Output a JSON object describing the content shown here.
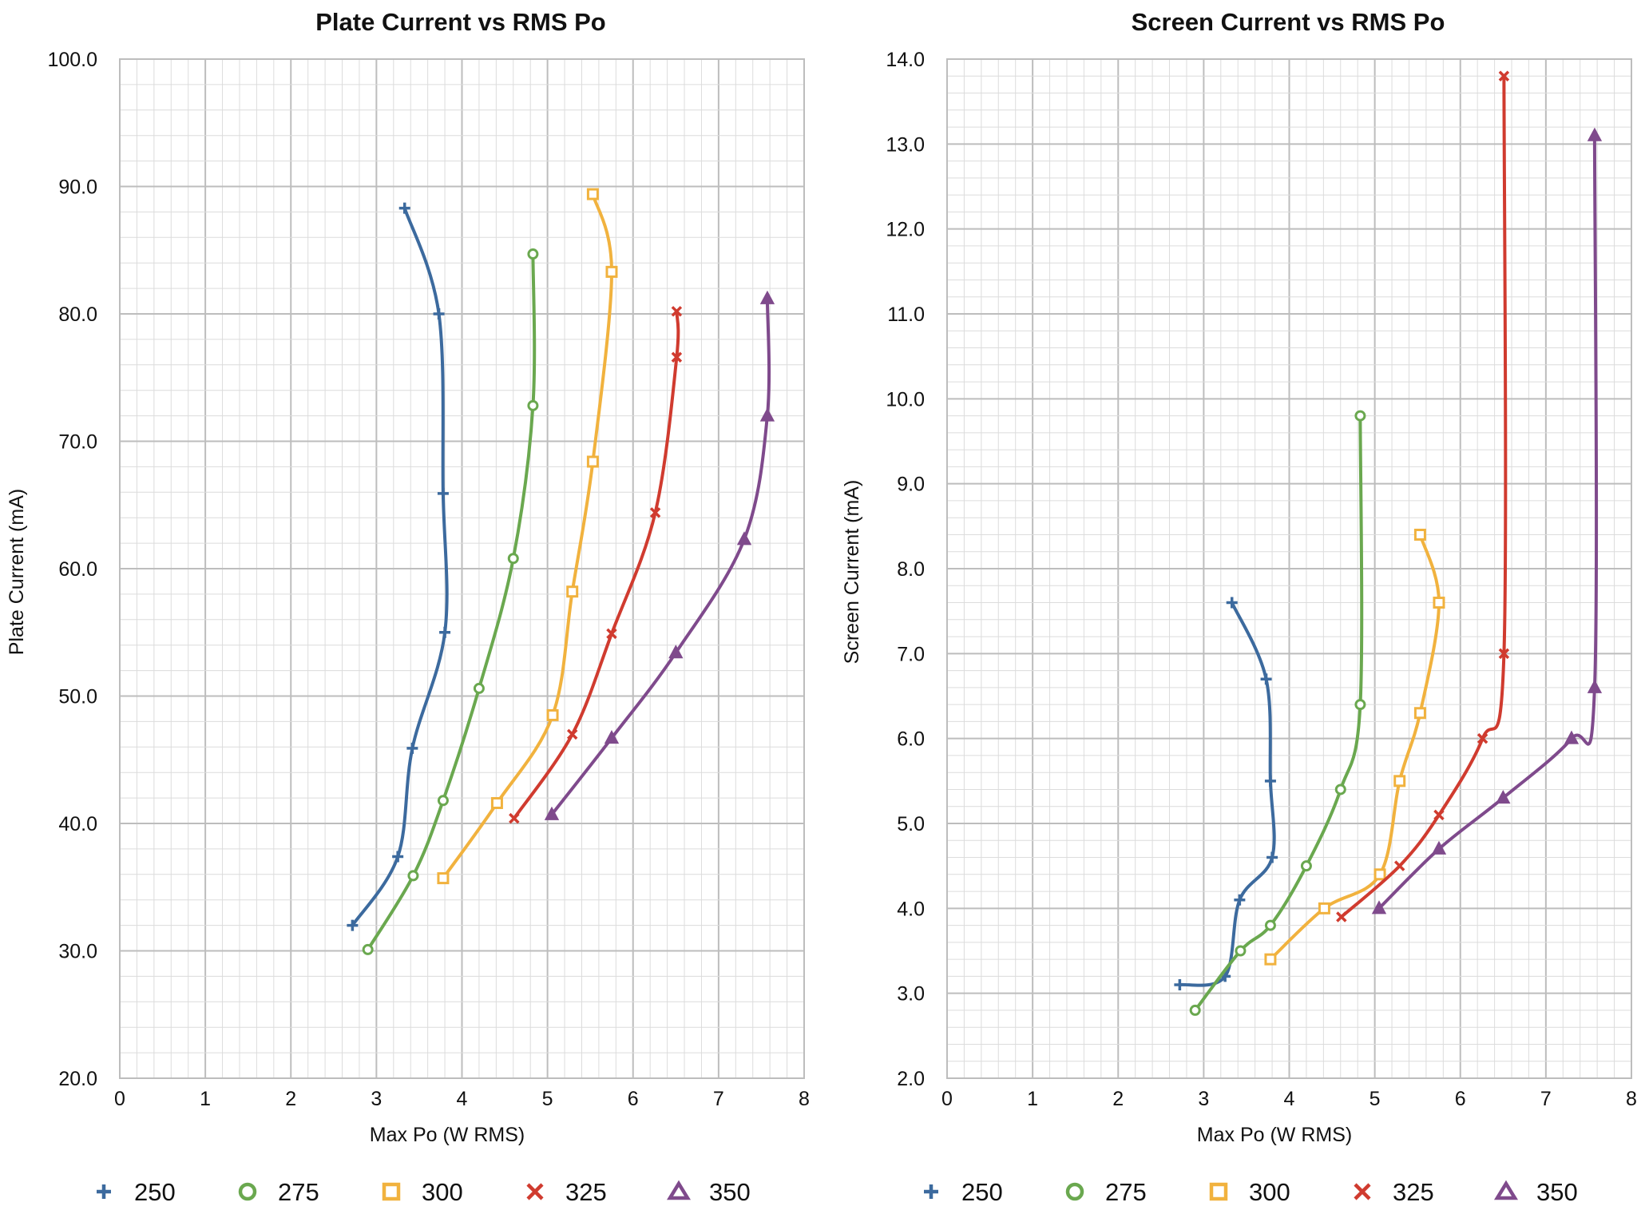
{
  "colors": {
    "250": "#3C6A9E",
    "275": "#6AA84F",
    "300": "#F1B23E",
    "325": "#D03B2F",
    "350": "#7F4A8C",
    "grid_major": "#bdbdbd",
    "grid_minor": "#dcdcdc"
  },
  "chart_data": [
    {
      "type": "line",
      "title": "Plate Current vs RMS Po",
      "xlabel": "Max Po (W RMS)",
      "ylabel": "Plate Current (mA)",
      "xlim": [
        0,
        8
      ],
      "ylim": [
        20,
        100
      ],
      "x_ticks": [
        "0",
        "1",
        "2",
        "3",
        "4",
        "5",
        "6",
        "7",
        "8"
      ],
      "y_ticks": [
        "20.0",
        "30.0",
        "40.0",
        "50.0",
        "60.0",
        "70.0",
        "80.0",
        "90.0",
        "100.0"
      ],
      "grid": true,
      "legend_position": "bottom",
      "series": [
        {
          "name": "250",
          "marker": "plus",
          "x": [
            2.72,
            3.25,
            3.42,
            3.8,
            3.78,
            3.73,
            3.33
          ],
          "y": [
            32.0,
            37.4,
            45.9,
            55.0,
            65.9,
            80.0,
            88.3
          ]
        },
        {
          "name": "275",
          "marker": "circle",
          "x": [
            2.9,
            3.43,
            3.78,
            4.2,
            4.6,
            4.83,
            4.83
          ],
          "y": [
            30.1,
            35.9,
            41.8,
            50.6,
            60.8,
            72.8,
            84.7
          ]
        },
        {
          "name": "300",
          "marker": "square",
          "x": [
            3.78,
            4.41,
            5.06,
            5.29,
            5.53,
            5.75,
            5.53
          ],
          "y": [
            35.7,
            41.6,
            48.5,
            58.2,
            68.4,
            83.3,
            89.4
          ]
        },
        {
          "name": "325",
          "marker": "cross",
          "x": [
            4.61,
            5.29,
            5.75,
            6.26,
            6.51,
            6.51
          ],
          "y": [
            40.4,
            47.0,
            54.9,
            64.4,
            76.6,
            80.2
          ]
        },
        {
          "name": "350",
          "marker": "triangle",
          "x": [
            5.05,
            5.75,
            6.5,
            7.3,
            7.57,
            7.57
          ],
          "y": [
            40.7,
            46.7,
            53.4,
            62.3,
            72.0,
            81.2
          ]
        }
      ]
    },
    {
      "type": "line",
      "title": "Screen Current vs RMS Po",
      "xlabel": "Max Po (W RMS)",
      "ylabel": "Screen Current (mA)",
      "xlim": [
        0,
        8
      ],
      "ylim": [
        2,
        14
      ],
      "x_ticks": [
        "0",
        "1",
        "2",
        "3",
        "4",
        "5",
        "6",
        "7",
        "8"
      ],
      "y_ticks": [
        "2.0",
        "3.0",
        "4.0",
        "5.0",
        "6.0",
        "7.0",
        "8.0",
        "9.0",
        "10.0",
        "11.0",
        "12.0",
        "13.0",
        "14.0"
      ],
      "grid": true,
      "legend_position": "bottom",
      "series": [
        {
          "name": "250",
          "marker": "plus",
          "x": [
            2.72,
            3.25,
            3.42,
            3.8,
            3.78,
            3.73,
            3.33
          ],
          "y": [
            3.1,
            3.2,
            4.1,
            4.6,
            5.5,
            6.7,
            7.6
          ]
        },
        {
          "name": "275",
          "marker": "circle",
          "x": [
            2.9,
            3.43,
            3.78,
            4.2,
            4.6,
            4.83,
            4.83
          ],
          "y": [
            2.8,
            3.5,
            3.8,
            4.5,
            5.4,
            6.4,
            9.8
          ]
        },
        {
          "name": "300",
          "marker": "square",
          "x": [
            3.78,
            4.41,
            5.06,
            5.29,
            5.53,
            5.75,
            5.53
          ],
          "y": [
            3.4,
            4.0,
            4.4,
            5.5,
            6.3,
            7.6,
            8.4
          ]
        },
        {
          "name": "325",
          "marker": "cross",
          "x": [
            4.61,
            5.29,
            5.75,
            6.26,
            6.51,
            6.51
          ],
          "y": [
            3.9,
            4.5,
            5.1,
            6.0,
            7.0,
            13.8
          ]
        },
        {
          "name": "350",
          "marker": "triangle",
          "x": [
            5.05,
            5.75,
            6.5,
            7.3,
            7.57,
            7.57
          ],
          "y": [
            4.0,
            4.7,
            5.3,
            6.0,
            6.6,
            13.1
          ]
        }
      ]
    }
  ]
}
